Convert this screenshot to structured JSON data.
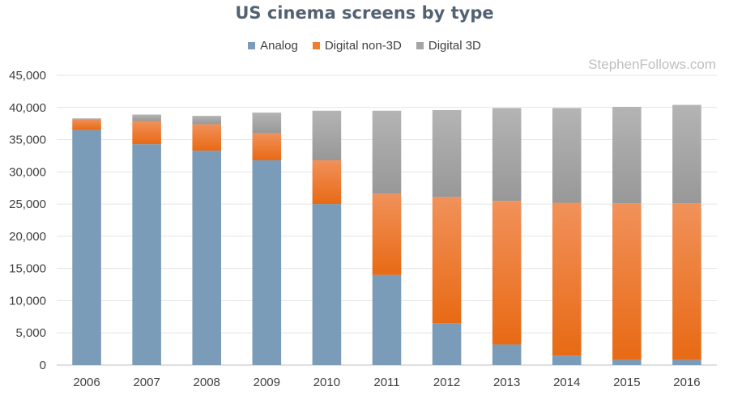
{
  "chart_data": {
    "type": "bar",
    "stacked": true,
    "title": "US cinema screens by type",
    "watermark": "StephenFollows.com",
    "categories": [
      "2006",
      "2007",
      "2008",
      "2009",
      "2010",
      "2011",
      "2012",
      "2013",
      "2014",
      "2015",
      "2016"
    ],
    "series": [
      {
        "name": "Analog",
        "color": "#7b9cb8",
        "values": [
          36500,
          34300,
          33300,
          31800,
          25000,
          14000,
          6500,
          3200,
          1500,
          800,
          800
        ]
      },
      {
        "name": "Digital non-3D",
        "color": "#ed7d31",
        "values": [
          1700,
          3600,
          4100,
          4200,
          6800,
          12600,
          19600,
          22300,
          23700,
          24300,
          24300
        ]
      },
      {
        "name": "Digital 3D",
        "color": "#a5a5a5",
        "values": [
          100,
          1000,
          1300,
          3200,
          7700,
          12900,
          13500,
          14400,
          14700,
          15000,
          15300
        ]
      }
    ],
    "ylim": [
      0,
      45000
    ],
    "yticks": [
      "0",
      "5,000",
      "10,000",
      "15,000",
      "20,000",
      "25,000",
      "30,000",
      "35,000",
      "40,000",
      "45,000"
    ],
    "ytick_values": [
      0,
      5000,
      10000,
      15000,
      20000,
      25000,
      30000,
      35000,
      40000,
      45000
    ],
    "grid": true,
    "legend_position": "top"
  }
}
